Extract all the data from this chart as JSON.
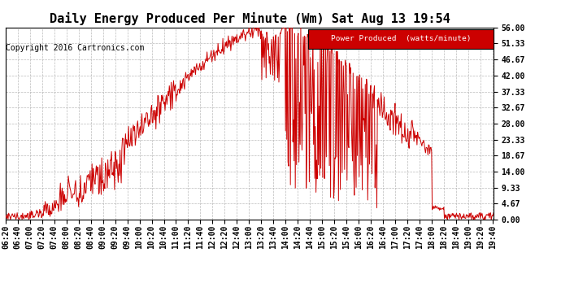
{
  "title": "Daily Energy Produced Per Minute (Wm) Sat Aug 13 19:54",
  "copyright": "Copyright 2016 Cartronics.com",
  "legend_label": "Power Produced  (watts/minute)",
  "legend_bg": "#cc0000",
  "legend_fg": "#ffffff",
  "line_color": "#cc0000",
  "bg_color": "#ffffff",
  "grid_color": "#aaaaaa",
  "ylim": [
    0.0,
    56.0
  ],
  "yticks": [
    0.0,
    4.67,
    9.33,
    14.0,
    18.67,
    23.33,
    28.0,
    32.67,
    37.33,
    42.0,
    46.67,
    51.33,
    56.0
  ],
  "ytick_labels": [
    "0.00",
    "4.67",
    "9.33",
    "14.00",
    "18.67",
    "23.33",
    "28.00",
    "32.67",
    "37.33",
    "42.00",
    "46.67",
    "51.33",
    "56.00"
  ],
  "title_fontsize": 11,
  "copyright_fontsize": 7,
  "tick_fontsize": 7
}
